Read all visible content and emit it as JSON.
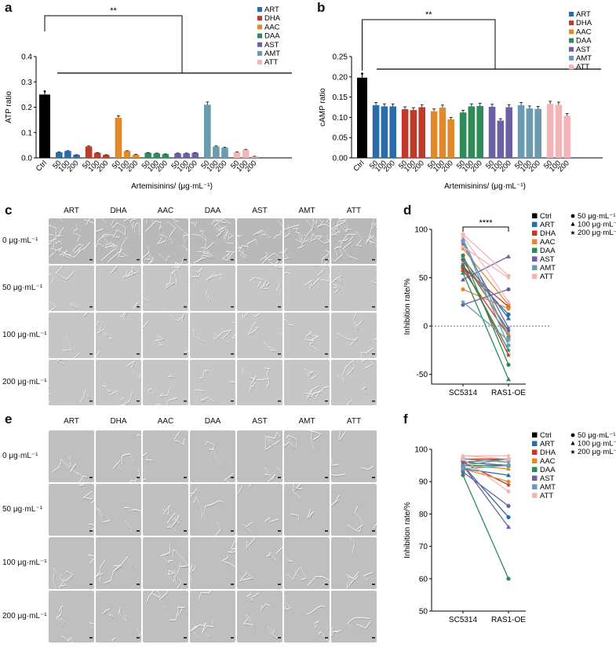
{
  "panels": {
    "a": "a",
    "b": "b",
    "c": "c",
    "d": "d",
    "e": "e",
    "f": "f"
  },
  "colors": {
    "Ctrl": "#000000",
    "ART": "#2a6ca8",
    "DHA": "#c0392b",
    "AAC": "#e08a2c",
    "DAA": "#2e8b57",
    "AST": "#6d5fa6",
    "AMT": "#6a9bb0",
    "ATT": "#f2b5b8"
  },
  "legend_groups": [
    "ART",
    "DHA",
    "AAC",
    "DAA",
    "AST",
    "AMT",
    "ATT"
  ],
  "legend_groups_ctrl": [
    "Ctrl",
    "ART",
    "DHA",
    "AAC",
    "DAA",
    "AST",
    "AMT",
    "ATT"
  ],
  "dose_legend": [
    "50 μg·mL⁻¹",
    "100 μg·mL⁻¹",
    "200 μg·mL⁻¹"
  ],
  "sig": {
    "ab": "**",
    "d": "****"
  },
  "chart_data": [
    {
      "id": "a",
      "type": "bar",
      "ylabel": "ATP ratio",
      "xlabel": "Artemisinins/ (μg·mL⁻¹)",
      "ylim": [
        0,
        0.4
      ],
      "yticks": [
        "0.0",
        "0.1",
        "0.2",
        "0.3",
        "0.4"
      ],
      "ctrl_label": "Ctrl",
      "ctrl_value": 0.25,
      "doses": [
        "50",
        "100",
        "200"
      ],
      "series": [
        {
          "name": "ART",
          "values": [
            0.022,
            0.027,
            0.012
          ]
        },
        {
          "name": "DHA",
          "values": [
            0.045,
            0.02,
            0.012
          ]
        },
        {
          "name": "AAC",
          "values": [
            0.158,
            0.027,
            0.013
          ]
        },
        {
          "name": "DAA",
          "values": [
            0.02,
            0.018,
            0.015
          ]
        },
        {
          "name": "AST",
          "values": [
            0.018,
            0.018,
            0.02
          ]
        },
        {
          "name": "AMT",
          "values": [
            0.21,
            0.045,
            0.04
          ]
        },
        {
          "name": "ATT",
          "values": [
            0.022,
            0.032,
            0.006
          ]
        }
      ]
    },
    {
      "id": "b",
      "type": "bar",
      "ylabel": "cAMP ratio",
      "xlabel": "Artemisinins/ (μg·mL⁻¹)",
      "ylim": [
        0,
        0.25
      ],
      "yticks": [
        "0.00",
        "0.05",
        "0.10",
        "0.15",
        "0.20",
        "0.25"
      ],
      "ctrl_label": "Ctrl",
      "ctrl_value": 0.198,
      "doses": [
        "50",
        "100",
        "200"
      ],
      "series": [
        {
          "name": "ART",
          "values": [
            0.13,
            0.127,
            0.127
          ]
        },
        {
          "name": "DHA",
          "values": [
            0.12,
            0.118,
            0.125
          ]
        },
        {
          "name": "AAC",
          "values": [
            0.115,
            0.124,
            0.095
          ]
        },
        {
          "name": "DAA",
          "values": [
            0.112,
            0.127,
            0.128
          ]
        },
        {
          "name": "AST",
          "values": [
            0.126,
            0.092,
            0.125
          ]
        },
        {
          "name": "AMT",
          "values": [
            0.13,
            0.122,
            0.121
          ]
        },
        {
          "name": "ATT",
          "values": [
            0.133,
            0.131,
            0.104
          ]
        }
      ]
    },
    {
      "id": "d",
      "type": "line",
      "ylabel": "Inhibition rate/%",
      "categories": [
        "SC5314",
        "RAS1-OE"
      ],
      "ylim": [
        -60,
        100
      ],
      "yticks": [
        "-50",
        "0",
        "50",
        "100"
      ],
      "series": [
        {
          "name": "ART",
          "values": [
            [
              62,
              12
            ],
            [
              70,
              8
            ],
            [
              68,
              -5
            ]
          ]
        },
        {
          "name": "DHA",
          "values": [
            [
              60,
              20
            ],
            [
              58,
              -10
            ],
            [
              64,
              -30
            ]
          ]
        },
        {
          "name": "AAC",
          "values": [
            [
              38,
              18
            ],
            [
              72,
              -8
            ],
            [
              80,
              22
            ]
          ]
        },
        {
          "name": "DAA",
          "values": [
            [
              73,
              -40
            ],
            [
              55,
              -55
            ],
            [
              62,
              -25
            ]
          ]
        },
        {
          "name": "AST",
          "values": [
            [
              22,
              38
            ],
            [
              48,
              72
            ],
            [
              85,
              -2
            ]
          ]
        },
        {
          "name": "AMT",
          "values": [
            [
              88,
              -20
            ],
            [
              90,
              -12
            ],
            [
              25,
              -15
            ]
          ]
        },
        {
          "name": "ATT",
          "values": [
            [
              95,
              52
            ],
            [
              93,
              25
            ],
            [
              82,
              50
            ]
          ]
        }
      ]
    },
    {
      "id": "f",
      "type": "line",
      "ylabel": "Inhibition rate/%",
      "categories": [
        "SC5314",
        "RAS1-OE"
      ],
      "ylim": [
        50,
        100
      ],
      "yticks": [
        "50",
        "60",
        "70",
        "80",
        "90",
        "100"
      ],
      "series": [
        {
          "name": "ART",
          "values": [
            [
              95,
              79
            ],
            [
              94,
              92
            ],
            [
              96,
              95
            ]
          ]
        },
        {
          "name": "DHA",
          "values": [
            [
              96,
              95
            ],
            [
              97,
              97
            ],
            [
              96,
              89
            ]
          ]
        },
        {
          "name": "AAC",
          "values": [
            [
              94,
              90
            ],
            [
              95,
              94
            ],
            [
              97,
              96
            ]
          ]
        },
        {
          "name": "DAA",
          "values": [
            [
              92,
              60
            ],
            [
              95,
              95
            ],
            [
              96,
              97
            ]
          ]
        },
        {
          "name": "AST",
          "values": [
            [
              93,
              82.5
            ],
            [
              95,
              76
            ],
            [
              96,
              95
            ]
          ]
        },
        {
          "name": "AMT",
          "values": [
            [
              94,
              95
            ],
            [
              95,
              97
            ],
            [
              97,
              96
            ]
          ]
        },
        {
          "name": "ATT",
          "values": [
            [
              97,
              87
            ],
            [
              98,
              97
            ],
            [
              98,
              98
            ]
          ]
        }
      ]
    }
  ],
  "micrographs": {
    "c": {
      "cols": [
        "ART",
        "DHA",
        "AAC",
        "DAA",
        "AST",
        "AMT",
        "ATT"
      ],
      "rows": [
        "0 μg·mL⁻¹",
        "50 μg·mL⁻¹",
        "100 μg·mL⁻¹",
        "200 μg·mL⁻¹"
      ]
    },
    "e": {
      "cols": [
        "ART",
        "DHA",
        "AAC",
        "DAA",
        "AST",
        "AMT",
        "ATT"
      ],
      "rows": [
        "0 μg·mL⁻¹",
        "50 μg·mL⁻¹",
        "100 μg·mL⁻¹",
        "200 μg·mL⁻¹"
      ]
    }
  }
}
